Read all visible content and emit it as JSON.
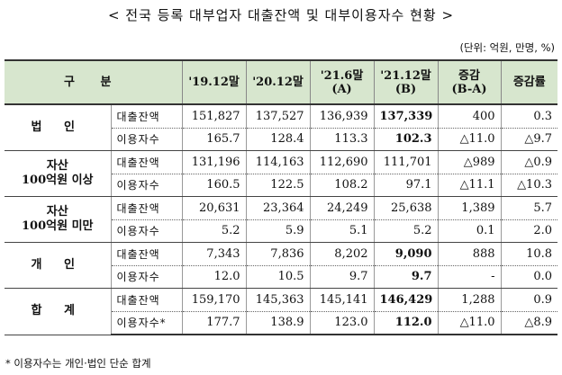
{
  "title": "< 전국 등록 대부업자 대출잔액 및 대부이용자수 현황 >",
  "unit": "(단위: 억원, 만명, %)",
  "headers": {
    "category": "구 분",
    "h19": "'19.12말",
    "h20": "'20.12말",
    "h21_6_line1": "'21.6말",
    "h21_6_line2": "(A)",
    "h21_12_line1": "'21.12말",
    "h21_12_line2": "(B)",
    "change_line1": "증감",
    "change_line2": "(B-A)",
    "rate": "증감률"
  },
  "groups": [
    {
      "name_line1": "법 인",
      "name_line2": "",
      "rows": [
        {
          "label": "대출잔액",
          "v19": "151,827",
          "v20": "137,527",
          "v21_6": "136,939",
          "v21_12": "137,339",
          "change": "400",
          "rate": "0.3"
        },
        {
          "label": "이용자수",
          "v19": "165.7",
          "v20": "128.4",
          "v21_6": "113.3",
          "v21_12": "102.3",
          "change": "△11.0",
          "rate": "△9.7"
        }
      ]
    },
    {
      "name_line1": "자산",
      "name_line2": "100억원 이상",
      "rows": [
        {
          "label": "대출잔액",
          "v19": "131,196",
          "v20": "114,163",
          "v21_6": "112,690",
          "v21_12": "111,701",
          "change": "△989",
          "rate": "△0.9"
        },
        {
          "label": "이용자수",
          "v19": "160.5",
          "v20": "122.5",
          "v21_6": "108.2",
          "v21_12": "97.1",
          "change": "△11.1",
          "rate": "△10.3"
        }
      ]
    },
    {
      "name_line1": "자산",
      "name_line2": "100억원 미만",
      "rows": [
        {
          "label": "대출잔액",
          "v19": "20,631",
          "v20": "23,364",
          "v21_6": "24,249",
          "v21_12": "25,638",
          "change": "1,389",
          "rate": "5.7"
        },
        {
          "label": "이용자수",
          "v19": "5.2",
          "v20": "5.9",
          "v21_6": "5.1",
          "v21_12": "5.2",
          "change": "0.1",
          "rate": "2.0"
        }
      ]
    },
    {
      "name_line1": "개 인",
      "name_line2": "",
      "rows": [
        {
          "label": "대출잔액",
          "v19": "7,343",
          "v20": "7,836",
          "v21_6": "8,202",
          "v21_12": "9,090",
          "change": "888",
          "rate": "10.8"
        },
        {
          "label": "이용자수",
          "v19": "12.0",
          "v20": "10.5",
          "v21_6": "9.7",
          "v21_12": "9.7",
          "change": "-",
          "rate": "0.0"
        }
      ]
    },
    {
      "name_line1": "합 계",
      "name_line2": "",
      "rows": [
        {
          "label": "대출잔액",
          "v19": "159,170",
          "v20": "145,363",
          "v21_6": "145,141",
          "v21_12": "146,429",
          "change": "1,288",
          "rate": "0.9"
        },
        {
          "label": "이용자수*",
          "v19": "177.7",
          "v20": "138.9",
          "v21_6": "123.0",
          "v21_12": "112.0",
          "change": "△11.0",
          "rate": "△8.9"
        }
      ]
    }
  ],
  "footnote": "* 이용자수는 개인·법인 단순 합계"
}
